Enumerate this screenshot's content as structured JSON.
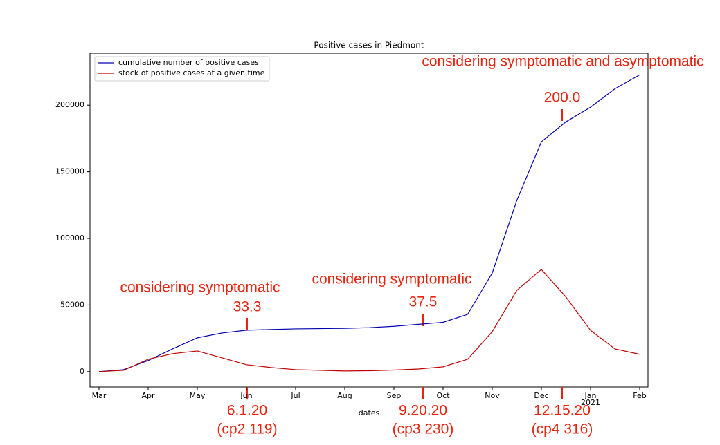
{
  "chart_data": {
    "type": "line",
    "title": "Positive cases in Piedmont",
    "x_label": "dates",
    "categories": [
      "Mar",
      null,
      "Apr",
      null,
      "May",
      null,
      "Jun",
      null,
      "Jul",
      null,
      "Aug",
      null,
      "Sep",
      null,
      "Oct",
      null,
      "Nov",
      null,
      "Dec",
      null,
      "Jan",
      null,
      "Feb"
    ],
    "x_year_label": "2021",
    "series": [
      {
        "name": "cumulative number of positive cases",
        "color": "#0000b0",
        "values": [
          0,
          1500,
          8300,
          17100,
          25400,
          29000,
          31100,
          31600,
          32100,
          32300,
          32500,
          33000,
          34000,
          35500,
          37000,
          43000,
          74000,
          128500,
          172500,
          187500,
          198500,
          212400,
          222800
        ]
      },
      {
        "name": "stock of positive cases at a given time",
        "color": "#c00000",
        "values": [
          0,
          1000,
          9300,
          13500,
          15500,
          10400,
          5200,
          3100,
          1500,
          1000,
          500,
          700,
          1200,
          2000,
          3600,
          9300,
          30000,
          61000,
          76700,
          56000,
          31000,
          17000,
          13000
        ]
      }
    ],
    "ylim": [
      -11500,
      239000
    ],
    "yticks": [
      0,
      50000,
      100000,
      150000,
      200000
    ],
    "legend": "upper left",
    "annotations": [
      "considering symptomatic",
      "33.3",
      "considering symptomatic",
      "37.5",
      "considering symptomatic and asymptomatic",
      "200.0",
      "6.1.20",
      "(cp2 119)",
      "9.20.20",
      "(cp3 230)",
      "12.15.20",
      "(cp4 316)"
    ]
  }
}
